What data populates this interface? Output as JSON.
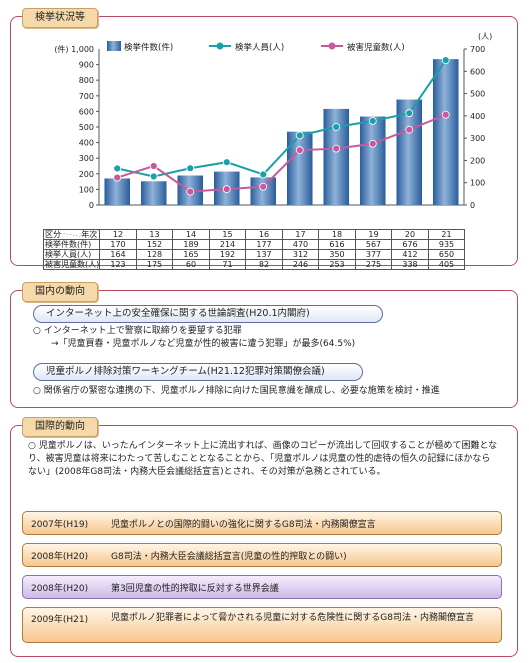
{
  "sections": {
    "s1_title": "検挙状況等",
    "s2_title": "国内の動向",
    "s3_title": "国際的動向"
  },
  "chart_data": {
    "type": "bar+line",
    "categories": [
      "12",
      "13",
      "14",
      "15",
      "16",
      "17",
      "18",
      "19",
      "20",
      "21"
    ],
    "left_axis_label": "(件) 1,000",
    "right_axis_label": "(人)",
    "left_ticks": [
      "900",
      "800",
      "700",
      "600",
      "500",
      "400",
      "300",
      "200",
      "100",
      "0"
    ],
    "right_ticks": [
      "700",
      "600",
      "500",
      "400",
      "300",
      "200",
      "100",
      "0"
    ],
    "ylim_left": [
      0,
      1000
    ],
    "ylim_right": [
      0,
      700
    ],
    "series": [
      {
        "name": "検挙件数(件)",
        "type": "bar",
        "axis": "left",
        "values": [
          170,
          152,
          189,
          214,
          177,
          470,
          616,
          567,
          676,
          935
        ]
      },
      {
        "name": "検挙人員(人)",
        "type": "line",
        "axis": "right",
        "color": "#1aa0a8",
        "values": [
          164,
          128,
          165,
          192,
          137,
          312,
          350,
          377,
          412,
          650
        ]
      },
      {
        "name": "被害児童数(人)",
        "type": "line",
        "axis": "right",
        "color": "#c8599b",
        "values": [
          123,
          175,
          60,
          71,
          82,
          246,
          253,
          275,
          338,
          405
        ]
      }
    ],
    "table": {
      "corner_left": "区分",
      "corner_right": "年次",
      "rows": [
        {
          "label": "検挙件数(件)",
          "values": [
            "170",
            "152",
            "189",
            "214",
            "177",
            "470",
            "616",
            "567",
            "676",
            "935"
          ]
        },
        {
          "label": "検挙人員(人)",
          "values": [
            "164",
            "128",
            "165",
            "192",
            "137",
            "312",
            "350",
            "377",
            "412",
            "650"
          ]
        },
        {
          "label": "被害児童数(人)",
          "values": [
            "123",
            "175",
            "60",
            "71",
            "82",
            "246",
            "253",
            "275",
            "338",
            "405"
          ]
        }
      ]
    }
  },
  "domestic": {
    "sub1": "インターネット上の安全確保に関する世論調査(H20.1内閣府)",
    "line1": "○ インターネット上で警察に取締りを要望する犯罪",
    "line2": "→「児童買春・児童ポルノなど児童が性的被害に遭う犯罪」が最多(64.5%)",
    "sub2": "児童ポルノ排除対策ワーキングチーム(H21.12犯罪対策閣僚会議)",
    "line3": "○ 関係省庁の緊密な連携の下、児童ポルノ排除に向けた国民意識を醸成し、必要な施策を検討・推進"
  },
  "international": {
    "para": "○ 児童ポルノは、いったんインターネット上に流出すれば、画像のコピーが流出して回収することが極めて困難となり、被害児童は将来にわたって苦しむこととなることから、「児童ポルノは児童の性的虐待の恒久の記録にほかならない」(2008年G8司法・内務大臣会議総括宣言)とされ、その対策が急務とされている。",
    "events": [
      {
        "year": "2007年(H19)",
        "text": "児童ポルノとの国際的闘いの強化に関するG8司法・内務閣僚宣言"
      },
      {
        "year": "2008年(H20)",
        "text": "G8司法・内務大臣会議総括宣言(児童の性的搾取との闘い)"
      },
      {
        "year": "2008年(H20)",
        "text": "第3回児童の性的搾取に反対する世界会議"
      },
      {
        "year": "2009年(H21)",
        "text": "児童ポルノ犯罪者によって脅かされる児童に対する危険性に関するG8司法・内務閣僚宣言"
      }
    ]
  }
}
